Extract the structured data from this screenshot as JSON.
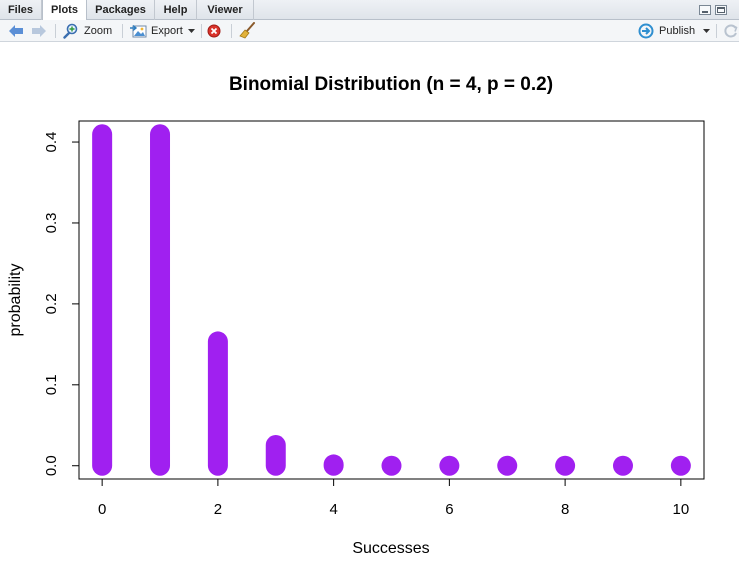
{
  "tabs": [
    {
      "label": "Files"
    },
    {
      "label": "Plots"
    },
    {
      "label": "Packages"
    },
    {
      "label": "Help"
    },
    {
      "label": "Viewer"
    }
  ],
  "toolbar": {
    "zoom_label": "Zoom",
    "export_label": "Export",
    "publish_label": "Publish"
  },
  "icons": {
    "back": "back-arrow-icon",
    "forward": "forward-arrow-icon",
    "zoom": "magnifier-icon",
    "export": "export-image-icon",
    "remove": "remove-plot-icon",
    "clear": "broom-icon",
    "publish": "publish-icon",
    "refresh": "refresh-icon",
    "minimize": "minimize-icon",
    "maximize": "maximize-icon"
  },
  "colors": {
    "series": "#a020f0",
    "axis": "#000000"
  },
  "chart_data": {
    "type": "scatter",
    "title": "Binomial Distribution (n = 4, p = 0.2)",
    "xlabel": "Successes",
    "ylabel": "probability",
    "x": [
      0,
      1,
      2,
      3,
      4,
      5,
      6,
      7,
      8,
      9,
      10
    ],
    "y": [
      0.4096,
      0.4096,
      0.1536,
      0.0256,
      0.0016,
      0,
      0,
      0,
      0,
      0,
      0
    ],
    "xticks": [
      "0",
      "2",
      "4",
      "6",
      "8",
      "10"
    ],
    "yticks": [
      "0.0",
      "0.1",
      "0.2",
      "0.3",
      "0.4"
    ],
    "xlim": [
      -0.4,
      10.4
    ],
    "ylim": [
      -0.0164,
      0.426
    ],
    "style": "vertical lines from 0 to probability with round caps",
    "grid": false,
    "legend": "none"
  }
}
